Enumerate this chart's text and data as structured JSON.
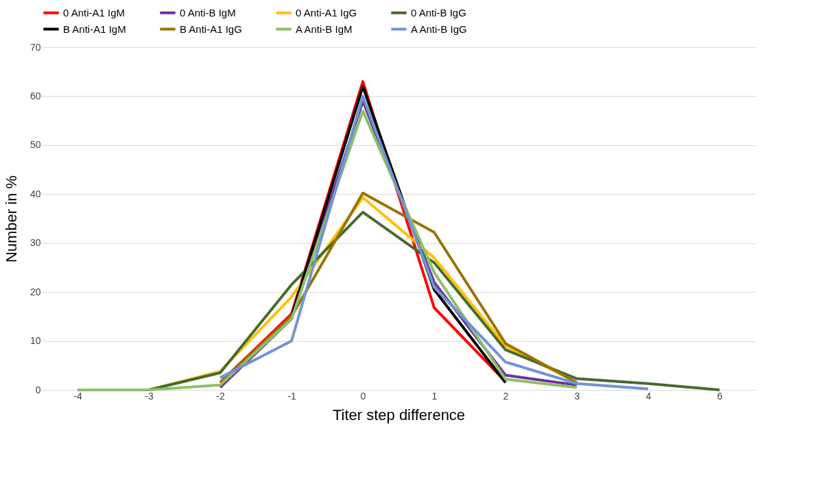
{
  "chart_data": {
    "type": "line",
    "xlabel": "Titer step difference",
    "ylabel": "Number in  %",
    "categories": [
      "-4",
      "-3",
      "-2",
      "-1",
      "0",
      "1",
      "2",
      "3",
      "4",
      "6"
    ],
    "ylim": [
      0,
      70
    ],
    "yticks": [
      0,
      10,
      20,
      30,
      40,
      50,
      60,
      70
    ],
    "grid": "y",
    "legend": "top",
    "line_style": "solid",
    "marker": "none",
    "series": [
      {
        "name": "0 Anti-A1 IgM",
        "color": "#ff0000",
        "values": [
          null,
          null,
          1.5,
          15.5,
          63,
          16.8,
          1.7,
          null,
          null,
          null
        ]
      },
      {
        "name": "0 Anti-B IgM",
        "color": "#7030a0",
        "values": [
          null,
          null,
          0.5,
          14.5,
          59,
          22,
          3,
          1.0,
          null,
          null
        ]
      },
      {
        "name": "0 Anti-A1 IgG",
        "color": "#ffc000",
        "values": [
          null,
          0,
          3.8,
          19,
          39.3,
          27,
          9,
          1.5,
          null,
          null
        ]
      },
      {
        "name": "0 Anti-B IgG",
        "color": "#476a2e",
        "values": [
          null,
          0,
          3.5,
          21.5,
          36.3,
          26,
          8.2,
          2.3,
          1.3,
          0
        ]
      },
      {
        "name": "B Anti-A1 IgM",
        "color": "#000000",
        "values": [
          null,
          null,
          null,
          15,
          62,
          20.5,
          1.5,
          null,
          null,
          null
        ]
      },
      {
        "name": "B Anti-A1 IgG",
        "color": "#997300",
        "values": [
          null,
          null,
          1.5,
          15,
          40.2,
          32.2,
          9.5,
          1.5,
          null,
          null
        ]
      },
      {
        "name": "A Anti-B IgM",
        "color": "#8cc068",
        "values": [
          0,
          0,
          1,
          14.5,
          57,
          24,
          2.2,
          0.5,
          null,
          null
        ]
      },
      {
        "name": "A Anti-B IgG",
        "color": "#6f95d3",
        "values": [
          null,
          null,
          2.5,
          10,
          60,
          21,
          5.7,
          1.3,
          0.2,
          null
        ]
      }
    ]
  }
}
